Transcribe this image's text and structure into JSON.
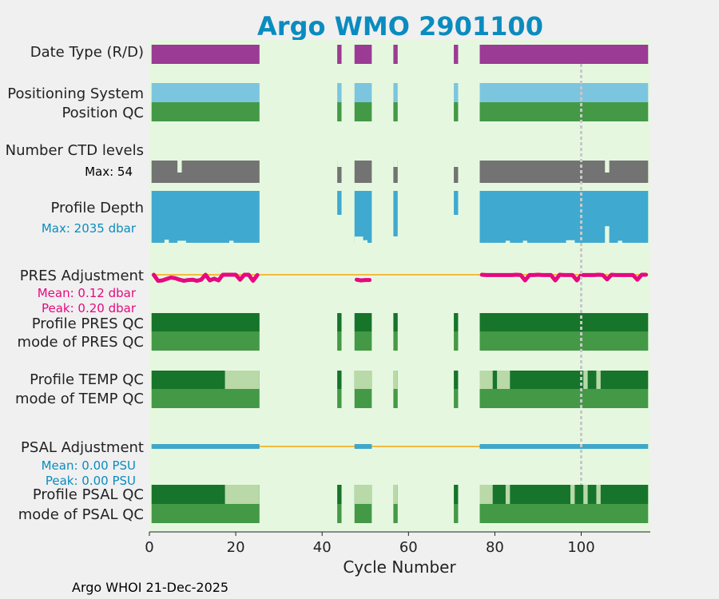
{
  "colors": {
    "page_bg": "#f0f0f0",
    "plot_bg": "#e5f8df",
    "title": "#0a8cbf",
    "data_type": "#9b3b95",
    "positioning": "#7cc5df",
    "qc_good": "#449947",
    "qc_dark": "#17742b",
    "qc_light": "#b9d9a8",
    "ctd": "#737373",
    "depth": "#40a9d0",
    "pres_adj": "#e6097f",
    "psal_adj": "#3fa7c9",
    "baseline": "#f4b942",
    "vline": "#c8c8c8",
    "max_label": "#000000",
    "depth_stat": "#0a8cbf",
    "pres_stat": "#e6097f",
    "psal_stat": "#0a8cbf"
  },
  "chart_data": {
    "type": "bar",
    "title": "Argo WMO 2901100",
    "xlabel": "Cycle Number",
    "xlim": [
      0,
      116
    ],
    "xticks": [
      0,
      20,
      40,
      60,
      80,
      100
    ],
    "reference_line_x": 100,
    "cycle_ranges": [
      [
        0.5,
        25.5
      ],
      [
        43.5,
        44.5
      ],
      [
        47.5,
        51.5
      ],
      [
        56.5,
        57.5
      ],
      [
        70.5,
        71.5
      ],
      [
        76.5,
        115.5
      ]
    ],
    "rows": [
      {
        "label": "Date Type (R/D)",
        "color_key": "data_type"
      },
      {
        "label": "Positioning System",
        "color_key": "positioning"
      },
      {
        "label": "Position QC",
        "color_key": "qc_good"
      },
      {
        "label": "Number CTD levels",
        "max_label": "Max: 54",
        "max_value": 54
      },
      {
        "label": "Profile Depth",
        "stat": "Max: 2035 dbar",
        "max_value": 2035
      },
      {
        "label": "PRES Adjustment",
        "stats": [
          "Mean: 0.12 dbar",
          "Peak: 0.20 dbar"
        ],
        "mean": 0.12,
        "peak": 0.2
      },
      {
        "label": "Profile PRES QC"
      },
      {
        "label": "mode of PRES QC"
      },
      {
        "label": "Profile TEMP QC"
      },
      {
        "label": "mode of TEMP QC"
      },
      {
        "label": "PSAL Adjustment",
        "stats": [
          "Mean: 0.00 PSU",
          "Peak: 0.00 PSU"
        ],
        "mean": 0.0,
        "peak": 0.0
      },
      {
        "label": "Profile PSAL QC"
      },
      {
        "label": "mode of PSAL QC"
      }
    ],
    "ctd_dips": [
      [
        6.5,
        7.5
      ],
      [
        105.5,
        106.5
      ]
    ],
    "depth_shallow_cycles": [
      44,
      57,
      71
    ],
    "depth_notches": [
      [
        47.5,
        49.5,
        0.88
      ],
      [
        49.5,
        50.5,
        0.95
      ],
      [
        3.5,
        4.5,
        0.94
      ],
      [
        6.5,
        8.5,
        0.96
      ],
      [
        18.5,
        19.5,
        0.96
      ],
      [
        82.5,
        83.5,
        0.96
      ],
      [
        86.5,
        87.5,
        0.96
      ],
      [
        96.5,
        98.5,
        0.95
      ],
      [
        105.5,
        106.5,
        0.68
      ],
      [
        108.5,
        109.5,
        0.96
      ]
    ],
    "profile_temp_qc_light": [
      [
        17.5,
        25.5
      ],
      [
        47.5,
        51.5
      ],
      [
        56.5,
        57.5
      ],
      [
        76.5,
        79.5
      ],
      [
        80.5,
        83.5
      ],
      [
        100.5,
        101.5
      ],
      [
        103.5,
        104.5
      ]
    ],
    "profile_psal_qc_light": [
      [
        17.5,
        25.5
      ],
      [
        47.5,
        51.5
      ],
      [
        56.5,
        57.5
      ],
      [
        76.5,
        79.5
      ],
      [
        82.5,
        83.5
      ],
      [
        97.5,
        98.5
      ],
      [
        100.5,
        101.5
      ],
      [
        103.5,
        104.5
      ]
    ],
    "pres_adj_series": [
      {
        "x": [
          1,
          2,
          3,
          4,
          5,
          6,
          7,
          8,
          9,
          10,
          11,
          12,
          13,
          14,
          15,
          16,
          17,
          18,
          19,
          20,
          21,
          22,
          23,
          24,
          25
        ],
        "y": [
          0.1,
          0.11,
          0.12,
          0.16,
          0.2,
          0.18,
          0.14,
          0.11,
          0.13,
          0.14,
          0.11,
          0.14,
          0.1,
          0.12,
          0.17,
          0.12,
          0.1,
          0.1,
          0.1,
          0.1,
          0.14,
          0.1,
          0.1,
          0.11,
          0.09
        ]
      },
      {
        "x": [
          48,
          49,
          50,
          51
        ],
        "y": [
          0.14,
          0.12,
          0.13,
          0.13
        ]
      },
      {
        "x": [
          77,
          78,
          79,
          80,
          81,
          82,
          83,
          84,
          85,
          86,
          87,
          88,
          89,
          90,
          91,
          92,
          93,
          94,
          95,
          96,
          97,
          98,
          99,
          100,
          101,
          102,
          103,
          104,
          105,
          106,
          107,
          108,
          109,
          110,
          111,
          112,
          113,
          114,
          115
        ],
        "y": [
          0.1,
          0.09,
          0.09,
          0.09,
          0.09,
          0.09,
          0.09,
          0.09,
          0.1,
          0.09,
          0.12,
          0.09,
          0.09,
          0.1,
          0.09,
          0.09,
          0.09,
          0.12,
          0.1,
          0.09,
          0.09,
          0.09,
          0.12,
          0.09,
          0.09,
          0.09,
          0.09,
          0.1,
          0.09,
          0.15,
          0.1,
          0.09,
          0.09,
          0.09,
          0.09,
          0.09,
          0.14,
          0.1,
          0.1
        ]
      }
    ]
  },
  "footer": {
    "credit": "Argo WHOI 21-Dec-2025"
  }
}
